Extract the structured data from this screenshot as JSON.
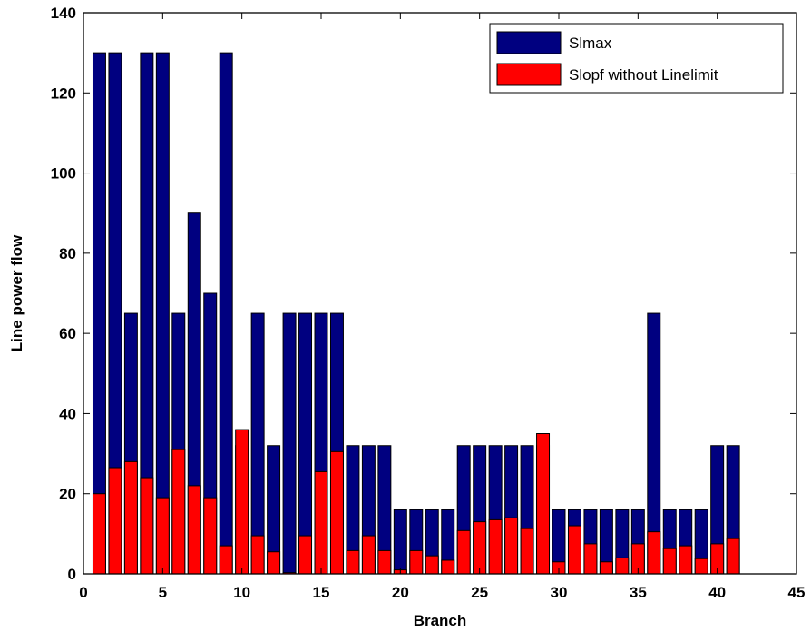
{
  "chart_data": {
    "type": "bar",
    "title": "",
    "xlabel": "Branch",
    "ylabel": "Line power flow",
    "xlim": [
      0,
      45
    ],
    "ylim": [
      0,
      140
    ],
    "xticks": [
      "0",
      "5",
      "10",
      "15",
      "20",
      "25",
      "30",
      "35",
      "40",
      "45"
    ],
    "yticks": [
      "0",
      "20",
      "40",
      "60",
      "80",
      "100",
      "120",
      "140"
    ],
    "categories": [
      1,
      2,
      3,
      4,
      5,
      6,
      7,
      8,
      9,
      10,
      11,
      12,
      13,
      14,
      15,
      16,
      17,
      18,
      19,
      20,
      21,
      22,
      23,
      24,
      25,
      26,
      27,
      28,
      29,
      30,
      31,
      32,
      33,
      34,
      35,
      36,
      37,
      38,
      39,
      40,
      41
    ],
    "legend_position": "top-right",
    "grid": false,
    "series": [
      {
        "name": "Slmax",
        "color": "#000080",
        "values": [
          130,
          130,
          65,
          130,
          130,
          65,
          90,
          70,
          130,
          32,
          65,
          32,
          65,
          65,
          65,
          65,
          32,
          32,
          32,
          16,
          16,
          16,
          16,
          32,
          32,
          32,
          32,
          32,
          32,
          16,
          16,
          16,
          16,
          16,
          16,
          65,
          16,
          16,
          16,
          32,
          32
        ]
      },
      {
        "name": "Slopf without Linelimit",
        "color": "#ff0000",
        "values": [
          20,
          26.5,
          28,
          24,
          19,
          31,
          22,
          19,
          7,
          36,
          9.5,
          5.5,
          0.3,
          9.5,
          25.5,
          30.5,
          5.8,
          9.5,
          5.8,
          1,
          5.8,
          4.5,
          3.4,
          10.8,
          13,
          13.5,
          14,
          11.3,
          35,
          3,
          12,
          7.5,
          3,
          4,
          7.5,
          10.5,
          6.3,
          7,
          3.8,
          7.5,
          8.8
        ]
      }
    ]
  }
}
